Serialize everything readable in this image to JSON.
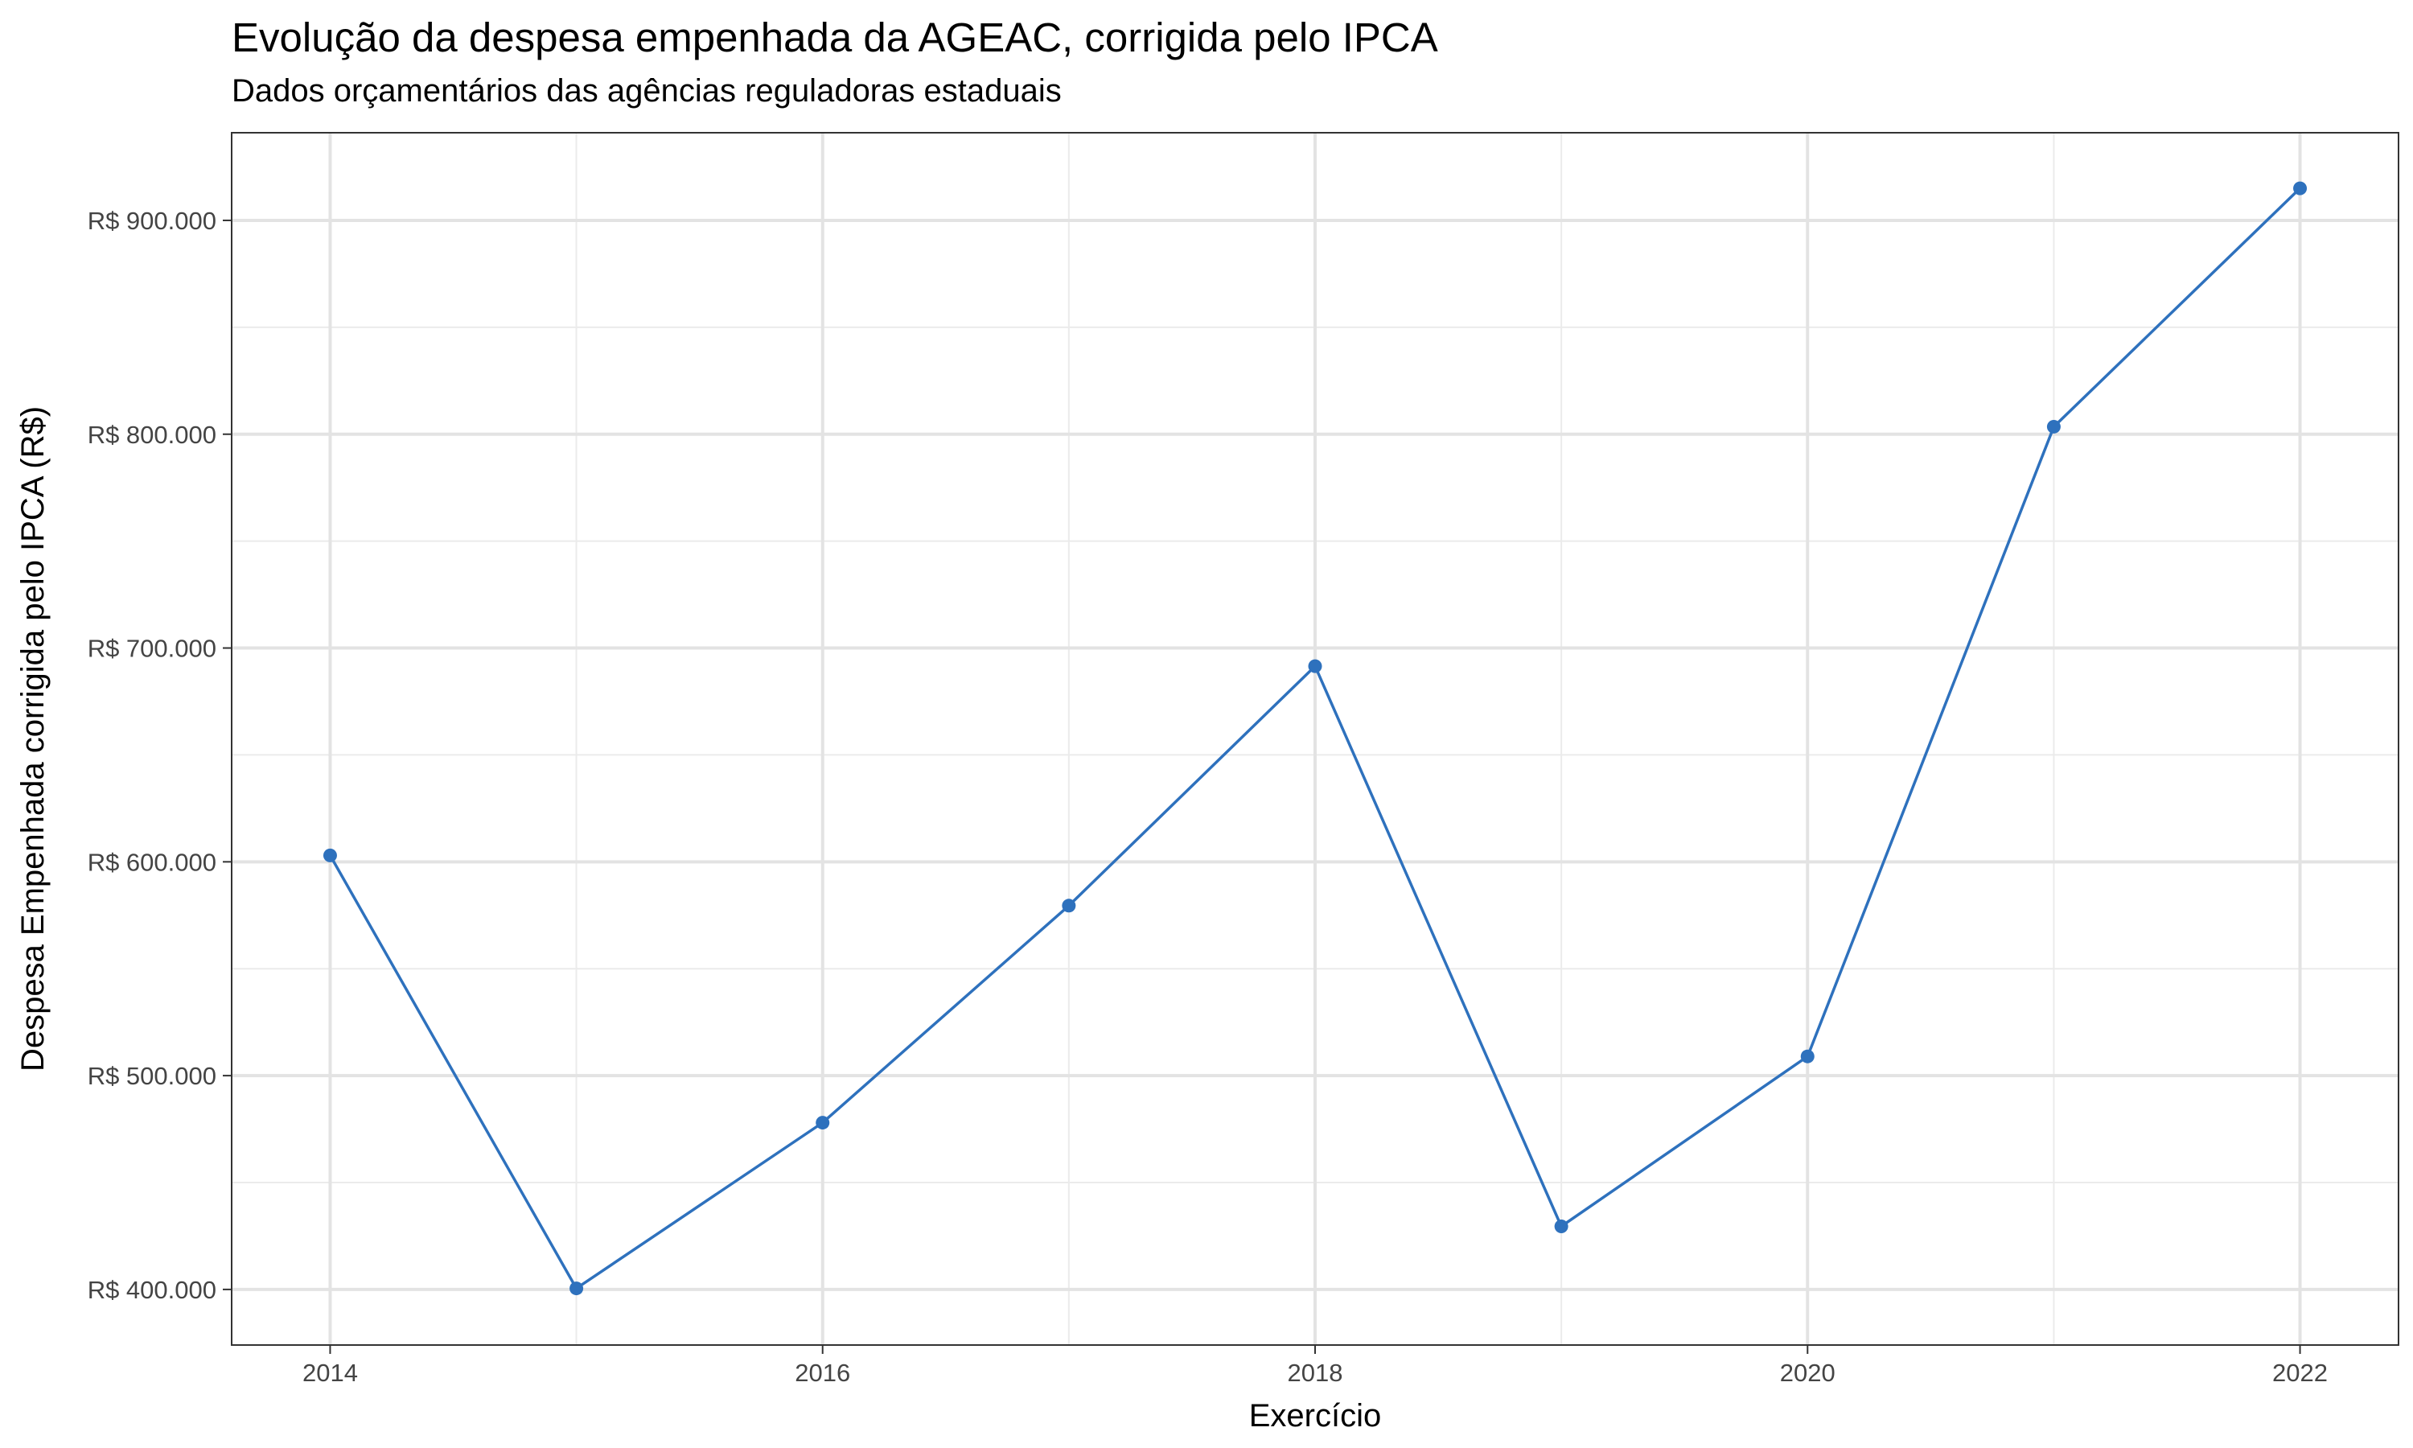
{
  "chart_data": {
    "type": "line",
    "title": "Evolução da despesa empenhada da AGEAC, corrigida pelo IPCA",
    "subtitle": "Dados orçamentários das agências reguladoras estaduais",
    "xlabel": "Exercício",
    "ylabel": "Despesa Empenhada corrigida pelo IPCA (R$)",
    "x": [
      2014,
      2015,
      2016,
      2017,
      2018,
      2019,
      2020,
      2021,
      2022
    ],
    "series": [
      {
        "values": [
          603000,
          400500,
          478000,
          579500,
          691500,
          429500,
          509000,
          803500,
          915000
        ]
      }
    ],
    "xlim": [
      2013.6,
      2022.4
    ],
    "ylim": [
      374000,
      941000
    ],
    "x_ticks": [
      2014,
      2016,
      2018,
      2020,
      2022
    ],
    "x_tick_labels": [
      "2014",
      "2016",
      "2018",
      "2020",
      "2022"
    ],
    "y_ticks": [
      400000,
      500000,
      600000,
      700000,
      800000,
      900000
    ],
    "y_tick_labels": [
      "R$ 400.000",
      "R$ 500.000",
      "R$ 600.000",
      "R$ 700.000",
      "R$ 800.000",
      "R$ 900.000"
    ],
    "grid": true,
    "line_color": "#2E71BD"
  }
}
